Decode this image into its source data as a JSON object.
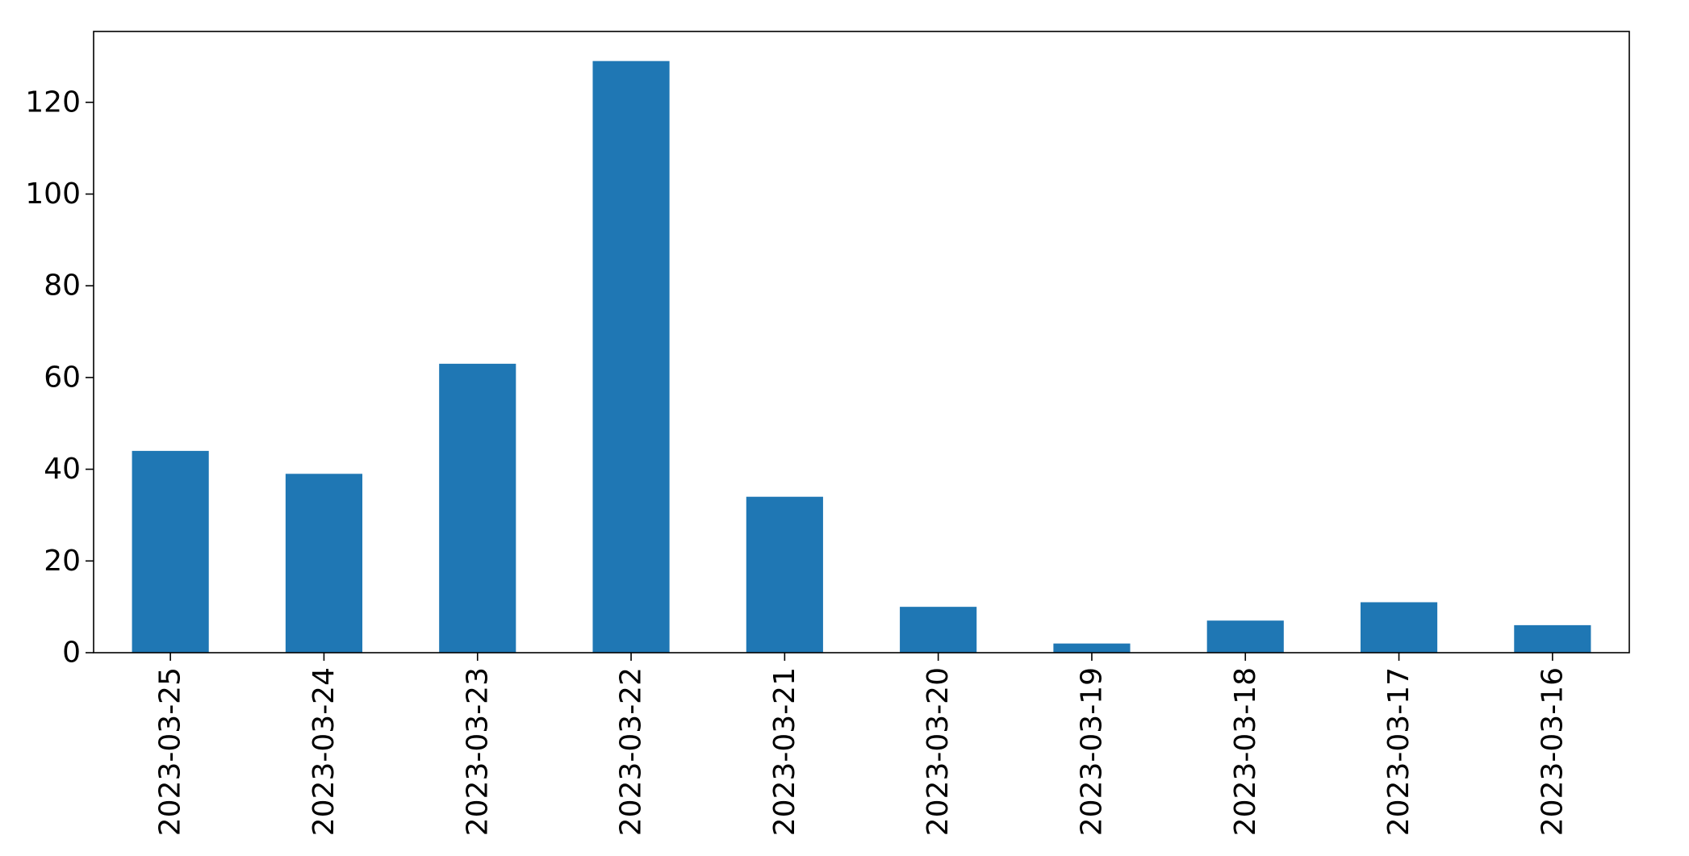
{
  "chart_data": {
    "type": "bar",
    "title": "",
    "xlabel": "",
    "ylabel": "",
    "categories": [
      "2023-03-25",
      "2023-03-24",
      "2023-03-23",
      "2023-03-22",
      "2023-03-21",
      "2023-03-20",
      "2023-03-19",
      "2023-03-18",
      "2023-03-17",
      "2023-03-16"
    ],
    "values": [
      44,
      39,
      63,
      129,
      34,
      10,
      2,
      7,
      11,
      6
    ],
    "ylim": [
      0,
      135.45
    ],
    "yticks": [
      0,
      20,
      40,
      60,
      80,
      100,
      120
    ],
    "grid": false,
    "legend": "none",
    "bar_color": "#1f77b4"
  }
}
